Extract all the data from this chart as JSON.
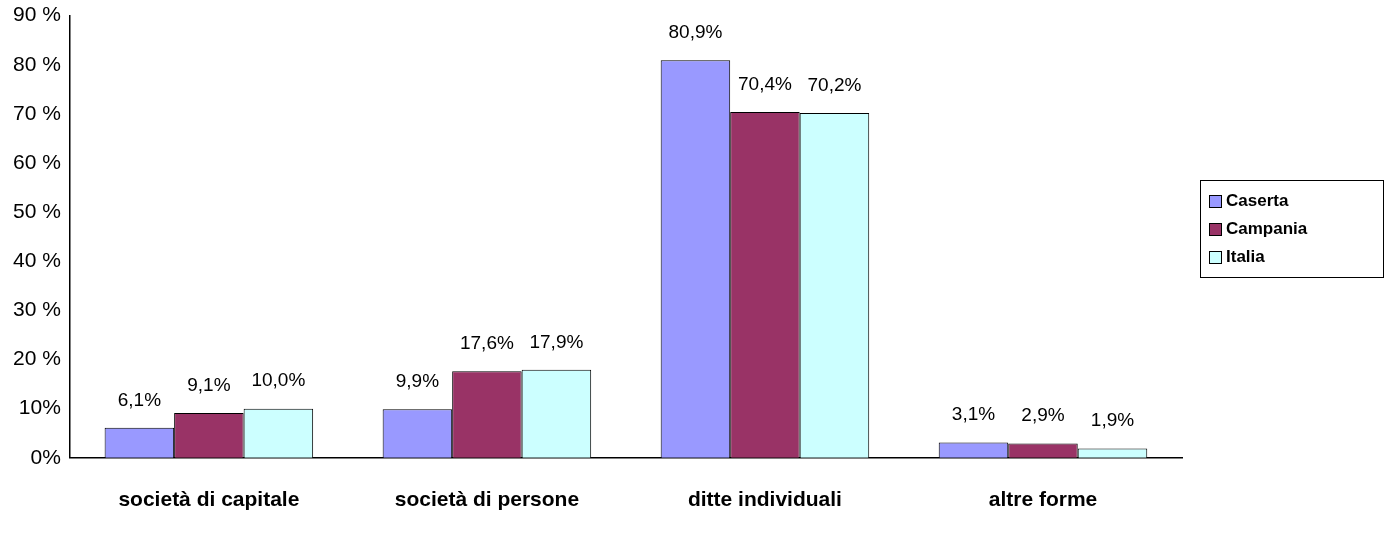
{
  "chart_data": {
    "type": "bar",
    "categories": [
      "società di capitale",
      "società di persone",
      "ditte individuali",
      "altre forme"
    ],
    "series": [
      {
        "name": "Caserta",
        "color": "#9999ff",
        "values": [
          6.1,
          9.9,
          80.9,
          3.1
        ],
        "value_labels": [
          "6,1%",
          "9,9%",
          "80,9%",
          "3,1%"
        ]
      },
      {
        "name": "Campania",
        "color": "#993366",
        "values": [
          9.1,
          17.6,
          70.4,
          2.9
        ],
        "value_labels": [
          "9,1%",
          "17,6%",
          "70,4%",
          "2,9%"
        ]
      },
      {
        "name": "Italia",
        "color": "#ccffff",
        "values": [
          10.0,
          17.9,
          70.2,
          1.9
        ],
        "value_labels": [
          "10,0%",
          "17,9%",
          "70,2%",
          "1,9%"
        ]
      }
    ],
    "ylim": [
      0,
      90
    ],
    "yticks": [
      {
        "value": 0,
        "label": "0%"
      },
      {
        "value": 10,
        "label": "10%"
      },
      {
        "value": 20,
        "label": "20 %"
      },
      {
        "value": 30,
        "label": "30 %"
      },
      {
        "value": 40,
        "label": "40 %"
      },
      {
        "value": 50,
        "label": "50 %"
      },
      {
        "value": 60,
        "label": "60 %"
      },
      {
        "value": 70,
        "label": "70 %"
      },
      {
        "value": 80,
        "label": "80 %"
      },
      {
        "value": 90,
        "label": "90 %"
      }
    ],
    "grid": false,
    "legend": "right"
  }
}
